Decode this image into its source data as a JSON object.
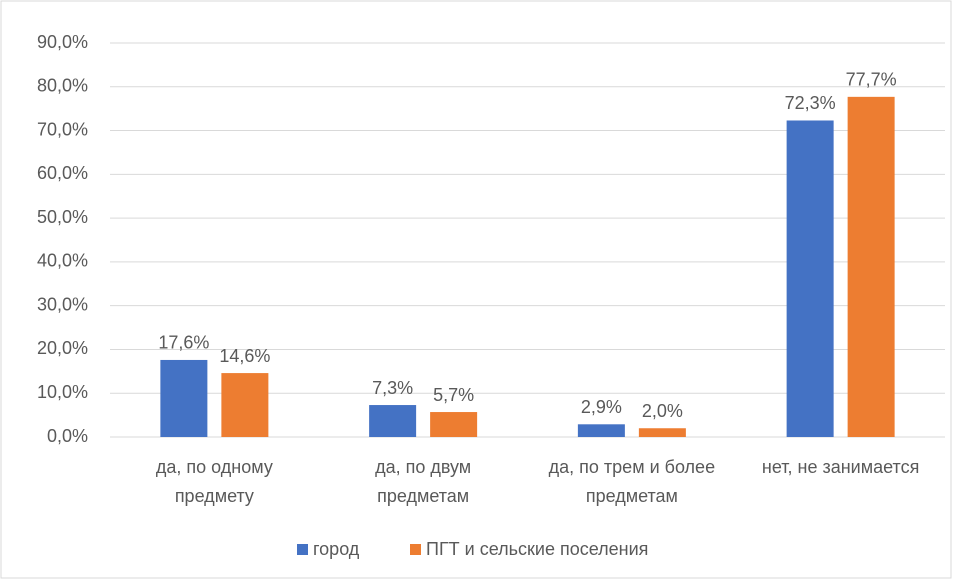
{
  "chart_data": {
    "type": "bar",
    "categories": [
      "да, по одному предмету",
      "да, по двум предметам",
      "да, по трем и более предметам",
      "нет, не занимается"
    ],
    "series": [
      {
        "name": "город",
        "color": "#4472c4",
        "values": [
          17.6,
          7.3,
          2.9,
          72.3
        ],
        "value_labels": [
          "17,6%",
          "7,3%",
          "2,9%",
          "72,3%"
        ]
      },
      {
        "name": "ПГТ и сельские поселения",
        "color": "#ed7d31",
        "values": [
          14.6,
          5.7,
          2.0,
          77.7
        ],
        "value_labels": [
          "14,6%",
          "5,7%",
          "2,0%",
          "77,7%"
        ]
      }
    ],
    "ylim": [
      0,
      90
    ],
    "yticks": [
      {
        "value": 0,
        "label": "0,0%"
      },
      {
        "value": 10,
        "label": "10,0%"
      },
      {
        "value": 20,
        "label": "20,0%"
      },
      {
        "value": 30,
        "label": "30,0%"
      },
      {
        "value": 40,
        "label": "40,0%"
      },
      {
        "value": 50,
        "label": "50,0%"
      },
      {
        "value": 60,
        "label": "60,0%"
      },
      {
        "value": 70,
        "label": "70,0%"
      },
      {
        "value": 80,
        "label": "80,0%"
      },
      {
        "value": 90,
        "label": "90,0%"
      }
    ],
    "grid": true,
    "legend": "bottom"
  }
}
